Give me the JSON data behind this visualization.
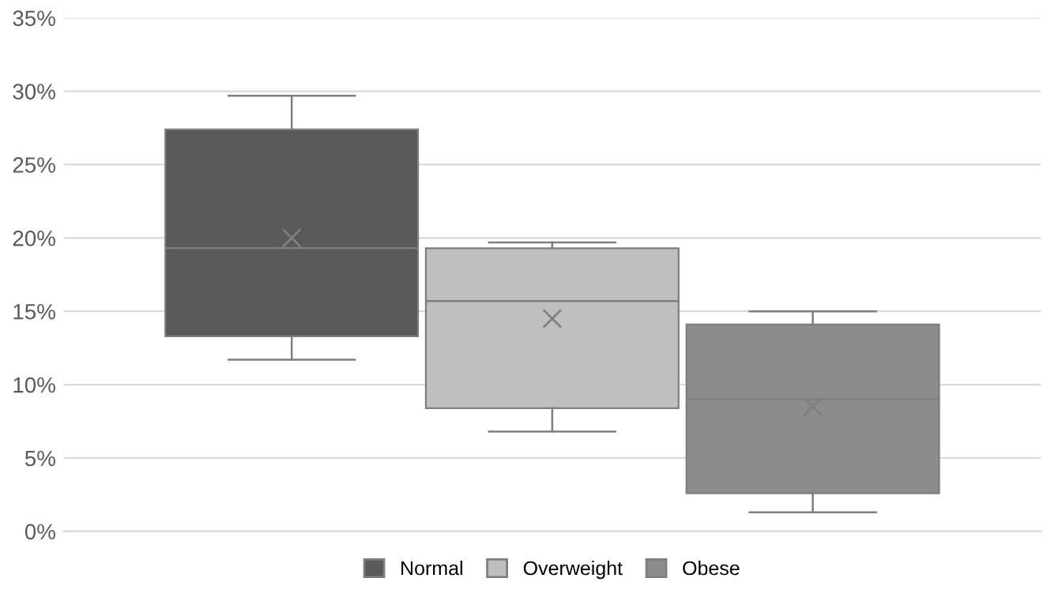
{
  "chart_data": {
    "type": "box",
    "categories": [
      null
    ],
    "series": [
      {
        "name": "Normal",
        "color": "#595959",
        "boxes": [
          {
            "low": 11.7,
            "q1": 13.3,
            "median": 19.3,
            "q3": 27.4,
            "high": 29.7,
            "mean": 20.0
          }
        ]
      },
      {
        "name": "Overweight",
        "color": "#bfbfbf",
        "boxes": [
          {
            "low": 6.8,
            "q1": 8.4,
            "median": 15.7,
            "q3": 19.3,
            "high": 19.7,
            "mean": 14.5
          }
        ]
      },
      {
        "name": "Obese",
        "color": "#8c8c8c",
        "boxes": [
          {
            "low": 1.3,
            "q1": 2.6,
            "median": 9.0,
            "q3": 14.1,
            "high": 15.0,
            "mean": 8.5
          }
        ]
      }
    ],
    "ylim": [
      0,
      35
    ],
    "yticks": [
      {
        "value": 0,
        "label": "0%"
      },
      {
        "value": 5,
        "label": "5%"
      },
      {
        "value": 10,
        "label": "10%"
      },
      {
        "value": 15,
        "label": "15%"
      },
      {
        "value": 20,
        "label": "20%"
      },
      {
        "value": 25,
        "label": "25%"
      },
      {
        "value": 30,
        "label": "30%"
      },
      {
        "value": 35,
        "label": "35%"
      }
    ],
    "grid": "y",
    "legend": "bottom",
    "marker": "cross"
  }
}
